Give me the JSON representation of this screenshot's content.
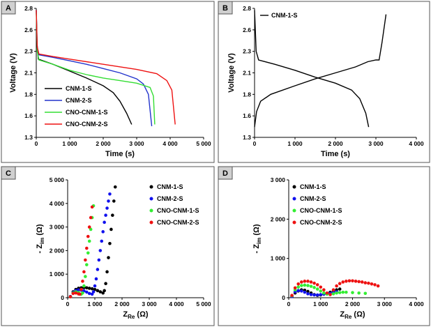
{
  "chart_data": [
    {
      "panel": "A",
      "type": "line",
      "x_label": "Time (s)",
      "y_label": "Voltage (V)",
      "xlim": [
        0,
        5000
      ],
      "ylim": [
        1.3,
        2.8
      ],
      "xticks": [
        0,
        {
          "value": 1000,
          "label": "1 000"
        },
        {
          "value": 2000,
          "label": "2 000"
        },
        {
          "value": 3000,
          "label": "3 000"
        },
        {
          "value": 4000,
          "label": "4 000"
        },
        {
          "value": 5000,
          "label": "5 000"
        }
      ],
      "yticks": [
        1.3,
        {
          "value": 1.55,
          "label": "1.6"
        },
        1.8,
        {
          "value": 2.05,
          "label": "2.1"
        },
        2.3,
        {
          "value": 2.55,
          "label": "2.6"
        },
        2.8
      ],
      "legend": "lower left",
      "series": [
        {
          "name": "CNM-1-S",
          "color": "#000000",
          "x": [
            0,
            20,
            60,
            500,
            1000,
            1500,
            2000,
            2300,
            2500,
            2700,
            2850
          ],
          "values": [
            2.78,
            2.4,
            2.21,
            2.15,
            2.07,
            1.99,
            1.9,
            1.82,
            1.72,
            1.58,
            1.45
          ]
        },
        {
          "name": "CNM-2-S",
          "color": "#2233cc",
          "x": [
            0,
            30,
            80,
            500,
            1000,
            1500,
            2000,
            2500,
            3000,
            3200,
            3350,
            3450
          ],
          "values": [
            2.78,
            2.35,
            2.26,
            2.23,
            2.19,
            2.15,
            2.1,
            2.05,
            1.98,
            1.92,
            1.8,
            1.43
          ]
        },
        {
          "name": "CNO-CNM-1-S",
          "color": "#33dd33",
          "x": [
            0,
            30,
            80,
            500,
            1000,
            1500,
            2000,
            2500,
            3000,
            3400,
            3500,
            3540
          ],
          "values": [
            2.75,
            2.3,
            2.2,
            2.15,
            2.08,
            2.03,
            1.99,
            1.96,
            1.93,
            1.88,
            1.78,
            1.45
          ]
        },
        {
          "name": "CNO-CNM-2-S",
          "color": "#ee1111",
          "x": [
            0,
            30,
            80,
            500,
            1000,
            2000,
            3000,
            3600,
            3900,
            4050,
            4150
          ],
          "values": [
            2.78,
            2.35,
            2.27,
            2.24,
            2.21,
            2.15,
            2.09,
            2.04,
            1.96,
            1.85,
            1.45
          ]
        }
      ]
    },
    {
      "panel": "B",
      "type": "line",
      "x_label": "Time (s)",
      "y_label": "Voltage (V)",
      "xlim": [
        0,
        4000
      ],
      "ylim": [
        1.3,
        2.8
      ],
      "xticks": [
        0,
        {
          "value": 1000,
          "label": "1 000"
        },
        {
          "value": 2000,
          "label": "2 000"
        },
        {
          "value": 3000,
          "label": "3 000"
        },
        {
          "value": 4000,
          "label": "4 000"
        }
      ],
      "yticks": [
        1.3,
        {
          "value": 1.55,
          "label": "1.6"
        },
        1.8,
        {
          "value": 2.05,
          "label": "2.1"
        },
        2.3,
        {
          "value": 2.55,
          "label": "2.6"
        },
        2.8
      ],
      "legend": "upper left",
      "series": [
        {
          "name": "CNM-1-S",
          "color": "#000000",
          "x": [
            0,
            40,
            100,
            500,
            1000,
            1500,
            2000,
            2400,
            2600,
            2750,
            2820,
            null,
            0,
            50,
            150,
            400,
            1000,
            1500,
            2000,
            2500,
            2800,
            3000,
            3080,
            3150,
            3250
          ],
          "values": [
            2.78,
            2.3,
            2.2,
            2.15,
            2.08,
            2.0,
            1.93,
            1.85,
            1.75,
            1.58,
            1.42,
            null,
            1.42,
            1.6,
            1.72,
            1.8,
            1.9,
            1.98,
            2.05,
            2.12,
            2.18,
            2.2,
            2.2,
            2.4,
            2.73
          ]
        }
      ]
    },
    {
      "panel": "C",
      "type": "scatter",
      "x_label": {
        "base": "Z",
        "sub": "Re",
        "unit": " (Ω)"
      },
      "y_label": {
        "base": "- Z",
        "sub": "im",
        "unit": " (Ω)"
      },
      "xlim": [
        0,
        5000
      ],
      "ylim": [
        0,
        5000
      ],
      "xticks": [
        0,
        {
          "value": 1000,
          "label": "1 000"
        },
        {
          "value": 2000,
          "label": "2 000"
        },
        {
          "value": 3000,
          "label": "3 000"
        },
        {
          "value": 4000,
          "label": "4 000"
        },
        {
          "value": 5000,
          "label": "5 000"
        }
      ],
      "yticks": [
        0,
        {
          "value": 1000,
          "label": "1 000"
        },
        {
          "value": 2000,
          "label": "2 000"
        },
        {
          "value": 3000,
          "label": "3 000"
        },
        {
          "value": 4000,
          "label": "4 000"
        },
        {
          "value": 5000,
          "label": "5 000"
        }
      ],
      "legend": "upper right",
      "series": [
        {
          "name": "CNM-1-S",
          "color": "#000000",
          "x": [
            100,
            200,
            300,
            400,
            500,
            600,
            700,
            800,
            900,
            1000,
            1100,
            1200,
            1300,
            1350,
            1400,
            1450,
            1500,
            1550,
            1600,
            1650,
            1700,
            1750
          ],
          "values": [
            50,
            250,
            350,
            400,
            420,
            430,
            420,
            400,
            380,
            350,
            300,
            250,
            200,
            300,
            600,
            1100,
            1700,
            2300,
            2900,
            3500,
            4100,
            4700
          ]
        },
        {
          "name": "CNM-2-S",
          "color": "#1111ee",
          "x": [
            100,
            200,
            300,
            400,
            500,
            600,
            700,
            800,
            900,
            950,
            1000,
            1050,
            1100,
            1150,
            1200,
            1250,
            1300,
            1350,
            1400,
            1450,
            1500,
            1550
          ],
          "values": [
            50,
            220,
            300,
            330,
            320,
            290,
            240,
            180,
            150,
            250,
            500,
            800,
            1200,
            1600,
            2000,
            2400,
            2800,
            3200,
            3500,
            3800,
            4100,
            4400
          ]
        },
        {
          "name": "CNO-CNM-1-S",
          "color": "#33ee33",
          "x": [
            100,
            200,
            300,
            400,
            500,
            550,
            600,
            650,
            700,
            750,
            800,
            850,
            900,
            950
          ],
          "values": [
            40,
            200,
            250,
            220,
            150,
            200,
            500,
            900,
            1400,
            1900,
            2400,
            2900,
            3400,
            3900
          ]
        },
        {
          "name": "CNO-CNM-2-S",
          "color": "#ee1111",
          "x": [
            100,
            200,
            300,
            400,
            450,
            500,
            550,
            600,
            650,
            700,
            750,
            800,
            850,
            900
          ],
          "values": [
            40,
            180,
            200,
            160,
            150,
            350,
            700,
            1100,
            1600,
            2100,
            2600,
            3000,
            3400,
            3850
          ]
        }
      ]
    },
    {
      "panel": "D",
      "type": "scatter",
      "x_label": {
        "base": "Z",
        "sub": "Re",
        "unit": " (Ω)"
      },
      "y_label": {
        "base": "- Z",
        "sub": "im",
        "unit": " (Ω)"
      },
      "xlim": [
        0,
        4000
      ],
      "ylim": [
        0,
        3000
      ],
      "xticks": [
        0,
        {
          "value": 1000,
          "label": "1 000"
        },
        {
          "value": 2000,
          "label": "2 000"
        },
        {
          "value": 3000,
          "label": "3 000"
        },
        {
          "value": 4000,
          "label": "4 000"
        }
      ],
      "yticks": [
        0,
        {
          "value": 1000,
          "label": "1 000"
        },
        {
          "value": 2000,
          "label": "2 000"
        },
        {
          "value": 3000,
          "label": "3 000"
        }
      ],
      "legend": "upper left",
      "series": [
        {
          "name": "CNM-1-S",
          "color": "#000000",
          "x": [
            100,
            200,
            300,
            400,
            500,
            600,
            700,
            800,
            900,
            1000,
            1100,
            1200,
            1300,
            1400,
            1500,
            1600
          ],
          "values": [
            30,
            120,
            170,
            200,
            190,
            160,
            120,
            80,
            60,
            70,
            90,
            110,
            140,
            170,
            200,
            220
          ]
        },
        {
          "name": "CNM-2-S",
          "color": "#1111ee",
          "x": [
            100,
            200,
            300,
            400,
            500,
            600,
            700,
            800,
            900,
            1000,
            1100,
            1200,
            1300,
            1400,
            1500
          ],
          "values": [
            30,
            150,
            180,
            170,
            140,
            100,
            80,
            70,
            70,
            80,
            90,
            100,
            110,
            130,
            150
          ]
        },
        {
          "name": "CNO-CNM-1-S",
          "color": "#33ee33",
          "x": [
            100,
            200,
            300,
            400,
            500,
            600,
            700,
            800,
            900,
            1000,
            1100,
            1200,
            1300,
            1400,
            1500,
            1600,
            1700,
            1800,
            2000,
            2200,
            2400
          ],
          "values": [
            50,
            200,
            270,
            310,
            320,
            310,
            290,
            260,
            220,
            170,
            120,
            90,
            80,
            100,
            120,
            130,
            140,
            140,
            130,
            120,
            110
          ]
        },
        {
          "name": "CNO-CNM-2-S",
          "color": "#ee1111",
          "x": [
            100,
            200,
            300,
            400,
            500,
            600,
            700,
            800,
            900,
            1000,
            1100,
            1200,
            1300,
            1400,
            1500,
            1600,
            1700,
            1800,
            1900,
            2000,
            2100,
            2200,
            2300,
            2400,
            2500,
            2600,
            2700,
            2800
          ],
          "values": [
            60,
            250,
            350,
            400,
            420,
            420,
            400,
            370,
            330,
            270,
            200,
            120,
            80,
            200,
            300,
            360,
            400,
            420,
            430,
            430,
            420,
            410,
            400,
            380,
            370,
            350,
            330,
            300
          ]
        }
      ]
    }
  ]
}
